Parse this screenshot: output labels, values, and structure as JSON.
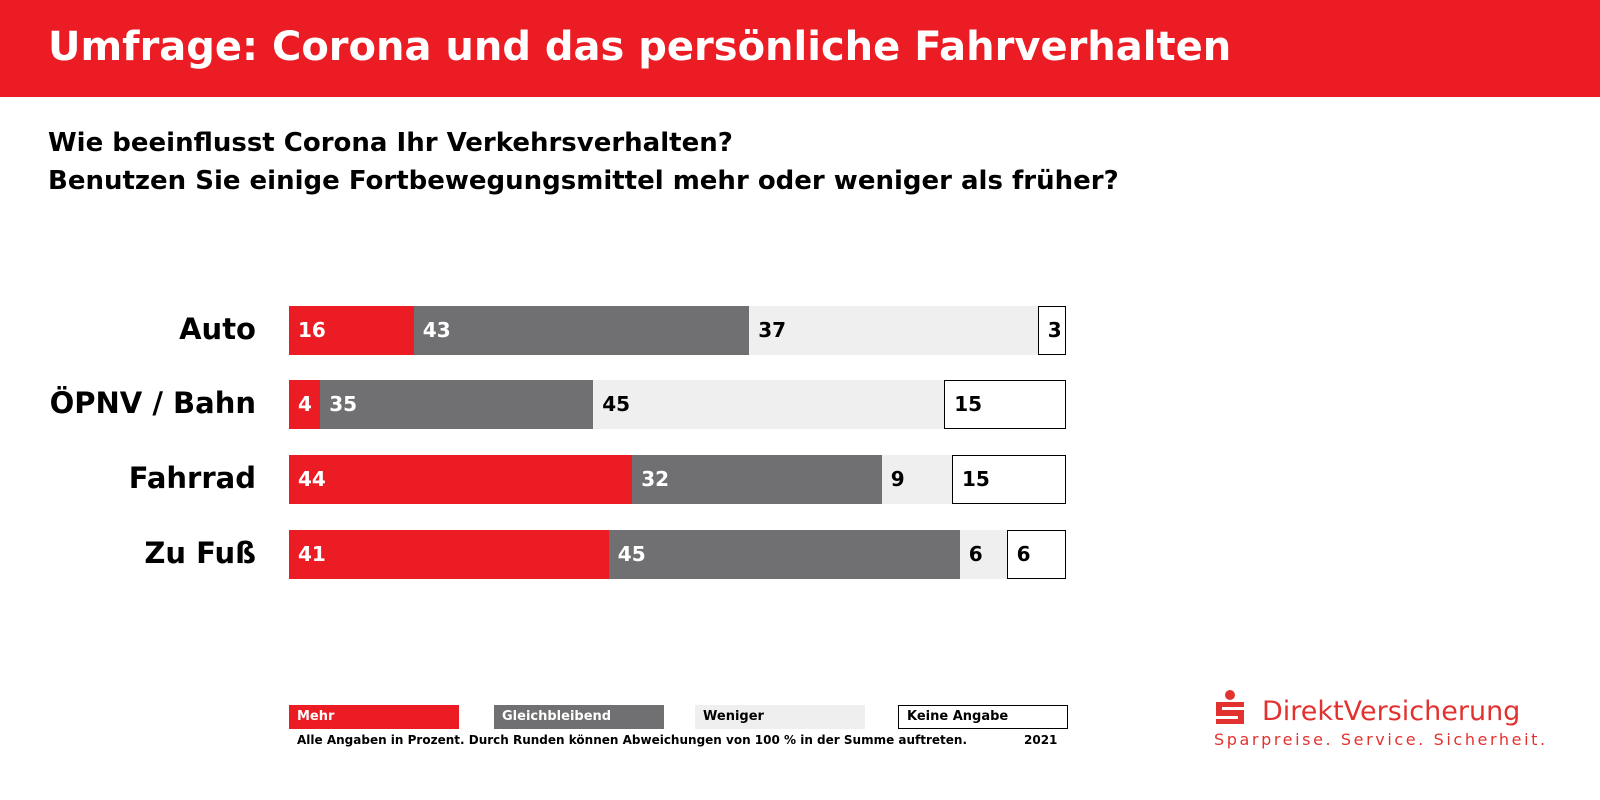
{
  "header": {
    "title": "Umfrage: Corona und das persönliche Fahrverhalten"
  },
  "question": {
    "line1": "Wie beeinflusst Corona Ihr Verkehrsverhalten?",
    "line2": "Benutzen Sie einige Fortbewegungsmittel mehr oder weniger als früher?"
  },
  "chart_data": {
    "type": "bar",
    "orientation": "horizontal-stacked-100",
    "categories": [
      "Auto",
      "ÖPNV / Bahn",
      "Fahrrad",
      "Zu Fuß"
    ],
    "series": [
      {
        "name": "Mehr",
        "color": "#ec1c24",
        "values": [
          16,
          4,
          44,
          41
        ]
      },
      {
        "name": "Gleichbleibend",
        "color": "#707072",
        "values": [
          43,
          35,
          32,
          45
        ]
      },
      {
        "name": "Weniger",
        "color": "#efefef",
        "values": [
          37,
          45,
          9,
          6
        ]
      },
      {
        "name": "Keine Angabe",
        "color": "#ffffff",
        "values": [
          3,
          15,
          15,
          6
        ]
      }
    ],
    "unit": "%"
  },
  "footer": {
    "note": "Alle Angaben in Prozent. Durch Runden können Abweichungen von 100 % in der Summe auftreten.",
    "year": "2021"
  },
  "logo": {
    "name": "DirektVersicherung",
    "tagline": "Sparpreise. Service. Sicherheit."
  }
}
